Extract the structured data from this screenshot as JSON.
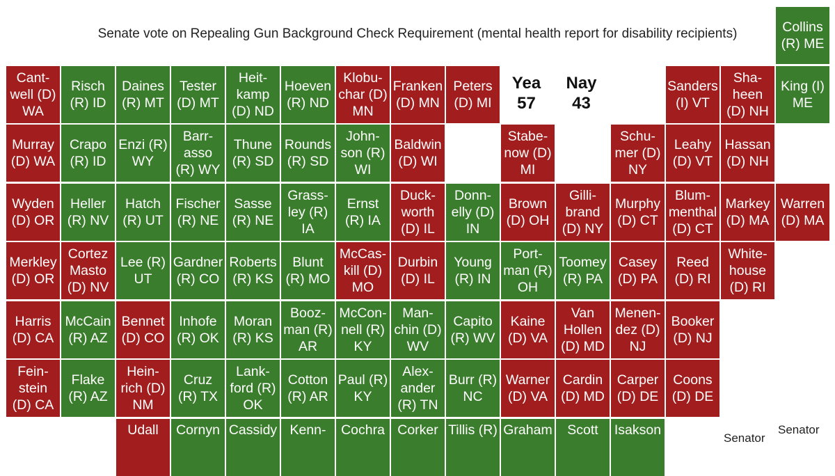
{
  "title": "Senate vote on Repealing Gun Background Check Requirement (mental health report for disability recipients)",
  "colors": {
    "Yea": "#3a7d2c",
    "Nay": "#a21d1d"
  },
  "legend_notes": [
    "Senator",
    "Senator"
  ],
  "chart_data": {
    "type": "table",
    "title": "Senate vote on Repealing Gun Background Check Requirement (mental health report for disability recipients)",
    "tally": [
      {
        "label": "Yea",
        "count": "57"
      },
      {
        "label": "Nay",
        "count": "43"
      }
    ],
    "senators": [
      {
        "row": 0,
        "col": 14,
        "label": "Collins\n(R) ME",
        "vote": "Yea"
      },
      {
        "row": 1,
        "col": 0,
        "label": "Cant-\nwell (D)\nWA",
        "vote": "Nay"
      },
      {
        "row": 1,
        "col": 1,
        "label": "Risch\n(R) ID",
        "vote": "Yea"
      },
      {
        "row": 1,
        "col": 2,
        "label": "Daines\n(R) MT",
        "vote": "Yea"
      },
      {
        "row": 1,
        "col": 3,
        "label": "Tester\n(D) MT",
        "vote": "Yea"
      },
      {
        "row": 1,
        "col": 4,
        "label": "Heit-\nkamp\n(D) ND",
        "vote": "Yea"
      },
      {
        "row": 1,
        "col": 5,
        "label": "Hoeven\n(R) ND",
        "vote": "Yea"
      },
      {
        "row": 1,
        "col": 6,
        "label": "Klobu-\nchar (D)\nMN",
        "vote": "Nay"
      },
      {
        "row": 1,
        "col": 7,
        "label": "Franken\n(D) MN",
        "vote": "Nay"
      },
      {
        "row": 1,
        "col": 8,
        "label": "Peters\n(D) MI",
        "vote": "Nay"
      },
      {
        "row": 1,
        "col": 12,
        "label": "Sanders\n(I) VT",
        "vote": "Nay"
      },
      {
        "row": 1,
        "col": 13,
        "label": "Sha-\nheen\n(D) NH",
        "vote": "Nay"
      },
      {
        "row": 1,
        "col": 14,
        "label": "King (I)\nME",
        "vote": "Yea"
      },
      {
        "row": 2,
        "col": 0,
        "label": "Murray\n(D) WA",
        "vote": "Nay"
      },
      {
        "row": 2,
        "col": 1,
        "label": "Crapo\n(R) ID",
        "vote": "Yea"
      },
      {
        "row": 2,
        "col": 2,
        "label": "Enzi (R)\nWY",
        "vote": "Yea"
      },
      {
        "row": 2,
        "col": 3,
        "label": "Barr-\nasso\n(R) WY",
        "vote": "Yea"
      },
      {
        "row": 2,
        "col": 4,
        "label": "Thune\n(R) SD",
        "vote": "Yea"
      },
      {
        "row": 2,
        "col": 5,
        "label": "Rounds\n(R) SD",
        "vote": "Yea"
      },
      {
        "row": 2,
        "col": 6,
        "label": "John-\nson (R)\nWI",
        "vote": "Yea"
      },
      {
        "row": 2,
        "col": 7,
        "label": "Baldwin\n(D) WI",
        "vote": "Nay"
      },
      {
        "row": 2,
        "col": 9,
        "label": "Stabe-\nnow (D)\nMI",
        "vote": "Nay"
      },
      {
        "row": 2,
        "col": 11,
        "label": "Schu-\nmer (D)\nNY",
        "vote": "Nay"
      },
      {
        "row": 2,
        "col": 12,
        "label": "Leahy\n(D) VT",
        "vote": "Nay"
      },
      {
        "row": 2,
        "col": 13,
        "label": "Hassan\n(D) NH",
        "vote": "Nay"
      },
      {
        "row": 3,
        "col": 0,
        "label": "Wyden\n(D) OR",
        "vote": "Nay"
      },
      {
        "row": 3,
        "col": 1,
        "label": "Heller\n(R) NV",
        "vote": "Yea"
      },
      {
        "row": 3,
        "col": 2,
        "label": "Hatch\n(R) UT",
        "vote": "Yea"
      },
      {
        "row": 3,
        "col": 3,
        "label": "Fischer\n(R) NE",
        "vote": "Yea"
      },
      {
        "row": 3,
        "col": 4,
        "label": "Sasse\n(R) NE",
        "vote": "Yea"
      },
      {
        "row": 3,
        "col": 5,
        "label": "Grass-\nley (R)\nIA",
        "vote": "Yea"
      },
      {
        "row": 3,
        "col": 6,
        "label": "Ernst\n(R) IA",
        "vote": "Yea"
      },
      {
        "row": 3,
        "col": 7,
        "label": "Duck-\nworth\n(D) IL",
        "vote": "Nay"
      },
      {
        "row": 3,
        "col": 8,
        "label": "Donn-\nelly (D)\nIN",
        "vote": "Yea"
      },
      {
        "row": 3,
        "col": 9,
        "label": "Brown\n(D) OH",
        "vote": "Nay"
      },
      {
        "row": 3,
        "col": 10,
        "label": "Gilli-\nbrand\n(D) NY",
        "vote": "Nay"
      },
      {
        "row": 3,
        "col": 11,
        "label": "Murphy\n(D) CT",
        "vote": "Nay"
      },
      {
        "row": 3,
        "col": 12,
        "label": "Blum-\nmenthal\n(D) CT",
        "vote": "Nay"
      },
      {
        "row": 3,
        "col": 13,
        "label": "Markey\n(D) MA",
        "vote": "Nay"
      },
      {
        "row": 3,
        "col": 14,
        "label": "Warren\n(D) MA",
        "vote": "Nay"
      },
      {
        "row": 4,
        "col": 0,
        "label": "Merkley\n(D) OR",
        "vote": "Nay"
      },
      {
        "row": 4,
        "col": 1,
        "label": "Cortez\nMasto\n(D) NV",
        "vote": "Nay"
      },
      {
        "row": 4,
        "col": 2,
        "label": "Lee (R)\nUT",
        "vote": "Yea"
      },
      {
        "row": 4,
        "col": 3,
        "label": "Gardner\n(R) CO",
        "vote": "Yea"
      },
      {
        "row": 4,
        "col": 4,
        "label": "Roberts\n(R) KS",
        "vote": "Yea"
      },
      {
        "row": 4,
        "col": 5,
        "label": "Blunt\n(R) MO",
        "vote": "Yea"
      },
      {
        "row": 4,
        "col": 6,
        "label": "McCas-\nkill (D)\nMO",
        "vote": "Nay"
      },
      {
        "row": 4,
        "col": 7,
        "label": "Durbin\n(D) IL",
        "vote": "Nay"
      },
      {
        "row": 4,
        "col": 8,
        "label": "Young\n(R) IN",
        "vote": "Yea"
      },
      {
        "row": 4,
        "col": 9,
        "label": "Port-\nman (R)\nOH",
        "vote": "Yea"
      },
      {
        "row": 4,
        "col": 10,
        "label": "Toomey\n(R) PA",
        "vote": "Yea"
      },
      {
        "row": 4,
        "col": 11,
        "label": "Casey\n(D) PA",
        "vote": "Nay"
      },
      {
        "row": 4,
        "col": 12,
        "label": "Reed\n(D) RI",
        "vote": "Nay"
      },
      {
        "row": 4,
        "col": 13,
        "label": "White-\nhouse\n(D) RI",
        "vote": "Nay"
      },
      {
        "row": 5,
        "col": 0,
        "label": "Harris\n(D) CA",
        "vote": "Nay"
      },
      {
        "row": 5,
        "col": 1,
        "label": "McCain\n(R) AZ",
        "vote": "Yea"
      },
      {
        "row": 5,
        "col": 2,
        "label": "Bennet\n(D) CO",
        "vote": "Nay"
      },
      {
        "row": 5,
        "col": 3,
        "label": "Inhofe\n(R) OK",
        "vote": "Yea"
      },
      {
        "row": 5,
        "col": 4,
        "label": "Moran\n(R) KS",
        "vote": "Yea"
      },
      {
        "row": 5,
        "col": 5,
        "label": "Booz-\nman (R)\nAR",
        "vote": "Yea"
      },
      {
        "row": 5,
        "col": 6,
        "label": "McCon-\nnell (R)\nKY",
        "vote": "Yea"
      },
      {
        "row": 5,
        "col": 7,
        "label": "Man-\nchin (D)\nWV",
        "vote": "Yea"
      },
      {
        "row": 5,
        "col": 8,
        "label": "Capito\n(R) WV",
        "vote": "Yea"
      },
      {
        "row": 5,
        "col": 9,
        "label": "Kaine\n(D) VA",
        "vote": "Nay"
      },
      {
        "row": 5,
        "col": 10,
        "label": "Van\nHollen\n(D) MD",
        "vote": "Nay"
      },
      {
        "row": 5,
        "col": 11,
        "label": "Menen-\ndez (D)\nNJ",
        "vote": "Nay"
      },
      {
        "row": 5,
        "col": 12,
        "label": "Booker\n(D) NJ",
        "vote": "Nay"
      },
      {
        "row": 6,
        "col": 0,
        "label": "Fein-\nstein\n(D) CA",
        "vote": "Nay"
      },
      {
        "row": 6,
        "col": 1,
        "label": "Flake\n(R) AZ",
        "vote": "Yea"
      },
      {
        "row": 6,
        "col": 2,
        "label": "Hein-\nrich (D)\nNM",
        "vote": "Nay"
      },
      {
        "row": 6,
        "col": 3,
        "label": "Cruz\n(R) TX",
        "vote": "Yea"
      },
      {
        "row": 6,
        "col": 4,
        "label": "Lank-\nford (R)\nOK",
        "vote": "Yea"
      },
      {
        "row": 6,
        "col": 5,
        "label": "Cotton\n(R) AR",
        "vote": "Yea"
      },
      {
        "row": 6,
        "col": 6,
        "label": "Paul (R)\nKY",
        "vote": "Yea"
      },
      {
        "row": 6,
        "col": 7,
        "label": "Alex-\nander\n(R) TN",
        "vote": "Yea"
      },
      {
        "row": 6,
        "col": 8,
        "label": "Burr (R)\nNC",
        "vote": "Yea"
      },
      {
        "row": 6,
        "col": 9,
        "label": "Warner\n(D) VA",
        "vote": "Nay"
      },
      {
        "row": 6,
        "col": 10,
        "label": "Cardin\n(D) MD",
        "vote": "Nay"
      },
      {
        "row": 6,
        "col": 11,
        "label": "Carper\n(D) DE",
        "vote": "Nay"
      },
      {
        "row": 6,
        "col": 12,
        "label": "Coons\n(D) DE",
        "vote": "Nay"
      },
      {
        "row": 7,
        "col": 2,
        "label": "Udall",
        "vote": "Nay"
      },
      {
        "row": 7,
        "col": 3,
        "label": "Cornyn",
        "vote": "Yea"
      },
      {
        "row": 7,
        "col": 4,
        "label": "Cassidy",
        "vote": "Yea"
      },
      {
        "row": 7,
        "col": 5,
        "label": "Kenn-",
        "vote": "Yea"
      },
      {
        "row": 7,
        "col": 6,
        "label": "Cochra",
        "vote": "Yea"
      },
      {
        "row": 7,
        "col": 7,
        "label": "Corker",
        "vote": "Yea"
      },
      {
        "row": 7,
        "col": 8,
        "label": "Tillis (R)",
        "vote": "Yea"
      },
      {
        "row": 7,
        "col": 9,
        "label": "Graham",
        "vote": "Yea"
      },
      {
        "row": 7,
        "col": 10,
        "label": "Scott",
        "vote": "Yea"
      },
      {
        "row": 7,
        "col": 11,
        "label": "Isakson",
        "vote": "Yea"
      }
    ]
  }
}
